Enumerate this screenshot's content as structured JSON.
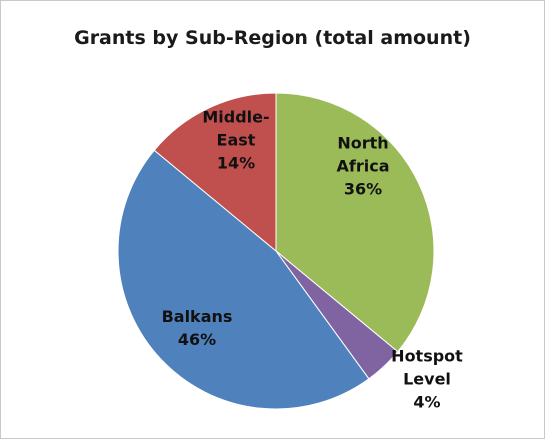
{
  "chart_data": {
    "type": "pie",
    "title": "Grants by Sub-Region (total amount)",
    "slices": [
      {
        "label": [
          "North",
          "Africa"
        ],
        "value": 36,
        "value_text": "36%",
        "color": "#9BBB59"
      },
      {
        "label": [
          "Hotspot",
          "Level"
        ],
        "value": 4,
        "value_text": "4%",
        "color": "#8064A2"
      },
      {
        "label": [
          "Balkans"
        ],
        "value": 46,
        "value_text": "46%",
        "color": "#4F81BD"
      },
      {
        "label": [
          "Middle-",
          "East"
        ],
        "value": 14,
        "value_text": "14%",
        "color": "#C0504D"
      }
    ],
    "start_angle_deg": 0,
    "direction": "clockwise",
    "legend": "none",
    "labels": "on-slice"
  }
}
